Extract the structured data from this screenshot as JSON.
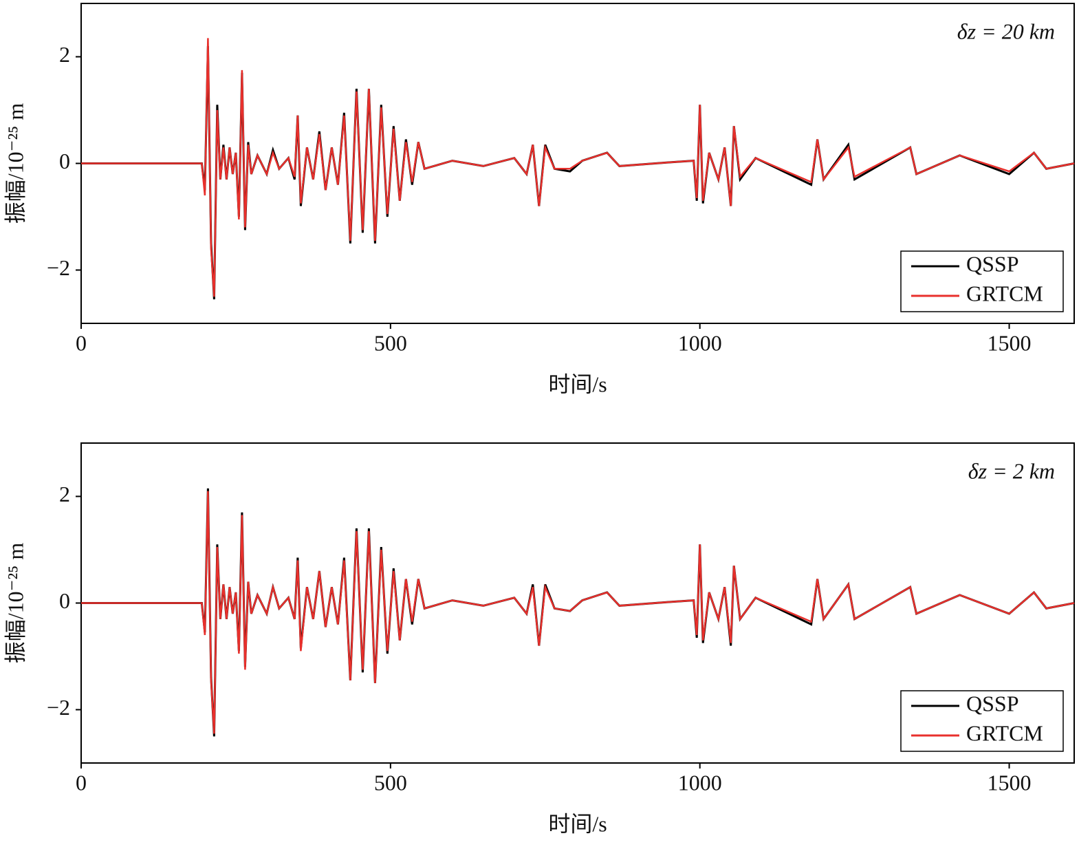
{
  "chart_data": [
    {
      "type": "line",
      "annotation": "δz = 20 km",
      "xlabel": "时间/s",
      "ylabel": "振幅/10⁻²⁵ m",
      "xlim": [
        0,
        1605
      ],
      "ylim": [
        -3,
        3
      ],
      "xticks": [
        0,
        500,
        1000,
        1500
      ],
      "yticks": [
        {
          "value": -2,
          "label": "−2"
        },
        0,
        2
      ],
      "legend": "lower right",
      "x": [
        0,
        195,
        200,
        205,
        210,
        215,
        220,
        225,
        230,
        235,
        240,
        245,
        250,
        255,
        260,
        265,
        270,
        275,
        285,
        300,
        310,
        320,
        335,
        345,
        350,
        355,
        365,
        375,
        385,
        395,
        405,
        415,
        425,
        435,
        445,
        455,
        465,
        475,
        485,
        495,
        505,
        515,
        525,
        535,
        545,
        555,
        600,
        650,
        700,
        720,
        730,
        740,
        750,
        765,
        790,
        810,
        850,
        870,
        950,
        990,
        995,
        1000,
        1005,
        1015,
        1030,
        1040,
        1050,
        1055,
        1065,
        1090,
        1180,
        1190,
        1200,
        1240,
        1250,
        1340,
        1350,
        1420,
        1500,
        1540,
        1560,
        1605
      ],
      "series": [
        {
          "name": "QSSP",
          "color": "#000000",
          "values": [
            0,
            0,
            -0.5,
            2.2,
            -1.5,
            -2.55,
            1.1,
            -0.3,
            0.35,
            -0.3,
            0.3,
            -0.2,
            0.2,
            -1.0,
            1.7,
            -1.25,
            0.4,
            -0.2,
            0.15,
            -0.2,
            0.25,
            -0.1,
            0.1,
            -0.3,
            0.9,
            -0.8,
            0.3,
            -0.3,
            0.6,
            -0.5,
            0.3,
            -0.4,
            0.95,
            -1.5,
            1.4,
            -1.3,
            1.4,
            -1.5,
            1.1,
            -1.0,
            0.7,
            -0.7,
            0.45,
            -0.4,
            0.4,
            -0.1,
            0.05,
            -0.05,
            0.1,
            -0.2,
            0.35,
            -0.8,
            0.35,
            -0.1,
            -0.15,
            0.05,
            0.2,
            -0.05,
            0.02,
            0.05,
            -0.7,
            1.1,
            -0.75,
            0.2,
            -0.3,
            0.3,
            -0.8,
            0.7,
            -0.3,
            0.1,
            -0.4,
            0.45,
            -0.3,
            0.35,
            -0.3,
            0.3,
            -0.2,
            0.15,
            -0.2,
            0.2,
            -0.1,
            0
          ]
        },
        {
          "name": "GRTCM",
          "color": "#e8302c",
          "values": [
            0,
            0,
            -0.6,
            2.35,
            -1.6,
            -2.5,
            1.0,
            -0.3,
            0.3,
            -0.3,
            0.3,
            -0.2,
            0.2,
            -1.05,
            1.75,
            -1.2,
            0.35,
            -0.2,
            0.15,
            -0.2,
            0.2,
            -0.1,
            0.1,
            -0.25,
            0.9,
            -0.75,
            0.3,
            -0.3,
            0.55,
            -0.5,
            0.3,
            -0.4,
            0.9,
            -1.45,
            1.35,
            -1.25,
            1.4,
            -1.45,
            1.05,
            -0.95,
            0.65,
            -0.7,
            0.4,
            -0.35,
            0.4,
            -0.1,
            0.05,
            -0.05,
            0.1,
            -0.2,
            0.35,
            -0.8,
            0.3,
            -0.1,
            -0.1,
            0.05,
            0.2,
            -0.05,
            0.02,
            0.05,
            -0.65,
            1.1,
            -0.7,
            0.2,
            -0.3,
            0.3,
            -0.8,
            0.7,
            -0.25,
            0.1,
            -0.35,
            0.45,
            -0.3,
            0.3,
            -0.25,
            0.3,
            -0.2,
            0.15,
            -0.15,
            0.2,
            -0.1,
            0
          ]
        }
      ]
    },
    {
      "type": "line",
      "annotation": "δz = 2 km",
      "xlabel": "时间/s",
      "ylabel": "振幅/10⁻²⁵ m",
      "xlim": [
        0,
        1605
      ],
      "ylim": [
        -3,
        3
      ],
      "xticks": [
        0,
        500,
        1000,
        1500
      ],
      "yticks": [
        {
          "value": -2,
          "label": "−2"
        },
        0,
        2
      ],
      "legend": "lower right",
      "x": [
        0,
        195,
        200,
        205,
        210,
        215,
        220,
        225,
        230,
        235,
        240,
        245,
        250,
        255,
        260,
        265,
        270,
        275,
        285,
        300,
        310,
        320,
        335,
        345,
        350,
        355,
        365,
        375,
        385,
        395,
        405,
        415,
        425,
        435,
        445,
        455,
        465,
        475,
        485,
        495,
        505,
        515,
        525,
        535,
        545,
        555,
        600,
        650,
        700,
        720,
        730,
        740,
        750,
        765,
        790,
        810,
        850,
        870,
        950,
        990,
        995,
        1000,
        1005,
        1015,
        1030,
        1040,
        1050,
        1055,
        1065,
        1090,
        1180,
        1190,
        1200,
        1240,
        1250,
        1340,
        1350,
        1420,
        1500,
        1540,
        1560,
        1605
      ],
      "series": [
        {
          "name": "QSSP",
          "color": "#000000",
          "values": [
            0,
            0,
            -0.55,
            2.15,
            -1.4,
            -2.5,
            1.1,
            -0.3,
            0.35,
            -0.3,
            0.3,
            -0.2,
            0.2,
            -0.9,
            1.7,
            -1.2,
            0.4,
            -0.2,
            0.15,
            -0.2,
            0.3,
            -0.1,
            0.1,
            -0.3,
            0.85,
            -0.85,
            0.3,
            -0.3,
            0.6,
            -0.45,
            0.3,
            -0.4,
            0.85,
            -1.45,
            1.4,
            -1.3,
            1.4,
            -1.5,
            1.05,
            -0.95,
            0.65,
            -0.7,
            0.45,
            -0.4,
            0.45,
            -0.1,
            0.05,
            -0.05,
            0.1,
            -0.2,
            0.35,
            -0.8,
            0.35,
            -0.1,
            -0.15,
            0.05,
            0.2,
            -0.05,
            0.02,
            0.05,
            -0.65,
            1.1,
            -0.75,
            0.2,
            -0.3,
            0.3,
            -0.8,
            0.7,
            -0.3,
            0.1,
            -0.4,
            0.45,
            -0.3,
            0.35,
            -0.3,
            0.3,
            -0.2,
            0.15,
            -0.2,
            0.2,
            -0.1,
            0
          ]
        },
        {
          "name": "GRTCM",
          "color": "#e8302c",
          "values": [
            0,
            0,
            -0.6,
            2.1,
            -1.45,
            -2.45,
            1.05,
            -0.3,
            0.35,
            -0.3,
            0.3,
            -0.2,
            0.2,
            -0.95,
            1.65,
            -1.25,
            0.4,
            -0.2,
            0.15,
            -0.2,
            0.3,
            -0.1,
            0.1,
            -0.3,
            0.8,
            -0.9,
            0.3,
            -0.3,
            0.6,
            -0.45,
            0.3,
            -0.4,
            0.8,
            -1.45,
            1.35,
            -1.25,
            1.35,
            -1.5,
            1.0,
            -0.9,
            0.6,
            -0.7,
            0.45,
            -0.35,
            0.45,
            -0.1,
            0.05,
            -0.05,
            0.1,
            -0.2,
            0.3,
            -0.8,
            0.3,
            -0.1,
            -0.15,
            0.05,
            0.2,
            -0.05,
            0.02,
            0.05,
            -0.6,
            1.1,
            -0.7,
            0.2,
            -0.3,
            0.3,
            -0.75,
            0.7,
            -0.3,
            0.1,
            -0.35,
            0.45,
            -0.3,
            0.35,
            -0.3,
            0.3,
            -0.2,
            0.15,
            -0.2,
            0.2,
            -0.1,
            0
          ]
        }
      ]
    }
  ]
}
